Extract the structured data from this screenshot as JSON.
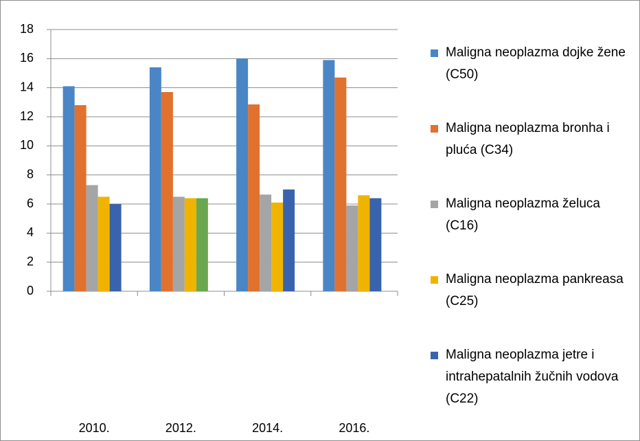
{
  "chart_data": {
    "type": "bar",
    "categories": [
      "2010.",
      "2012.",
      "2014.",
      "2016."
    ],
    "series": [
      {
        "name": "Maligna neoplazma dojke žene (C50)",
        "color": "#4a86c6",
        "values": [
          14.1,
          15.4,
          16.0,
          15.9
        ]
      },
      {
        "name": "Maligna neoplazma bronha i pluća (C34)",
        "color": "#e0712f",
        "values": [
          12.8,
          13.7,
          12.85,
          14.7
        ]
      },
      {
        "name": "Maligna neoplazma želuca (C16)",
        "color": "#a5a5a5",
        "values": [
          7.3,
          6.5,
          6.65,
          5.9
        ]
      },
      {
        "name": "Maligna neoplazma pankreasa (C25)",
        "color": "#f0b400",
        "values": [
          6.5,
          6.4,
          6.1,
          6.6
        ]
      },
      {
        "name": "Maligna neoplazma jetre i intrahepatalnih žučnih vodova  (C22)",
        "color": "#3a63ad",
        "colors": [
          "#3a63ad",
          "#6aa84f",
          "#3a63ad",
          "#3a63ad"
        ],
        "values": [
          6.0,
          6.4,
          7.0,
          6.4
        ]
      }
    ],
    "ylim": [
      0,
      18
    ],
    "yticks": [
      0,
      2,
      4,
      6,
      8,
      10,
      12,
      14,
      16,
      18
    ],
    "grid": true,
    "legend": "right"
  }
}
